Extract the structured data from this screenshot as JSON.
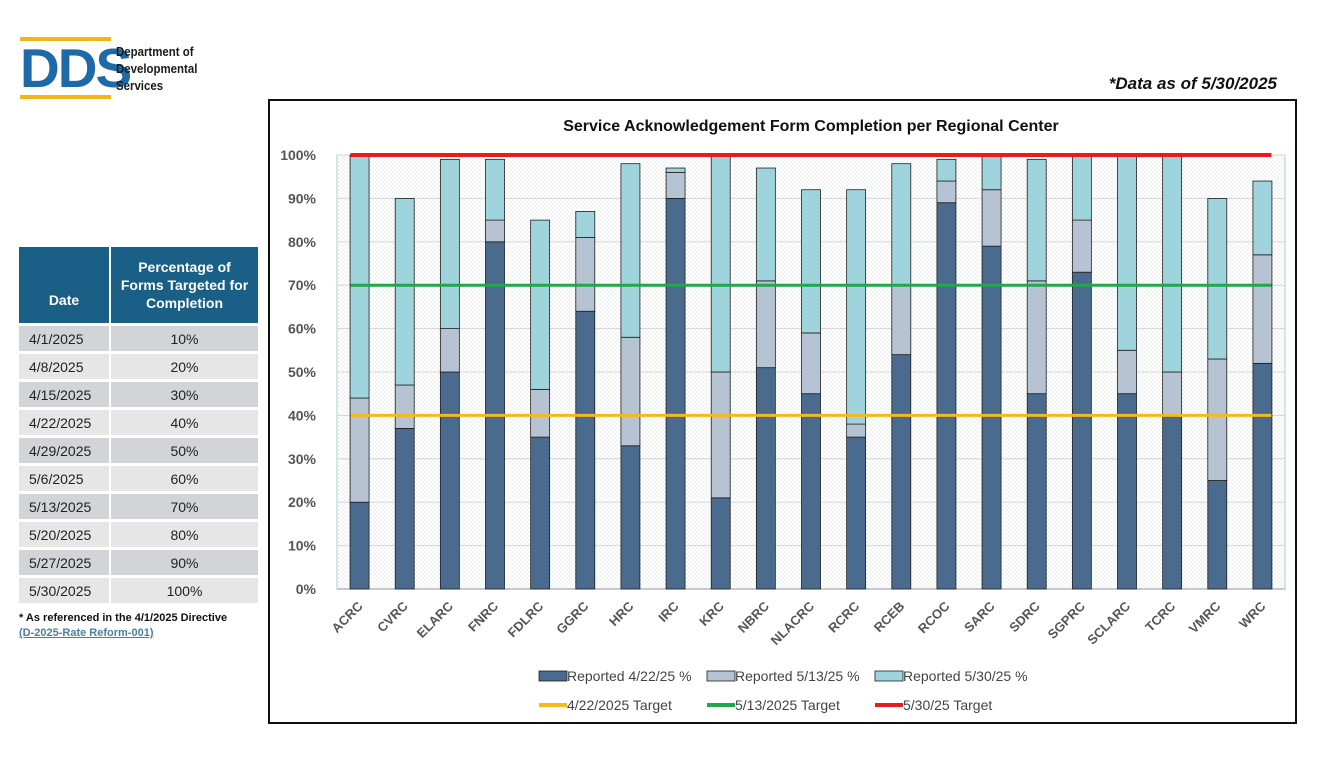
{
  "logo": {
    "letters": "DDS",
    "line1": "Department of",
    "line2": "Developmental",
    "line3": "Services"
  },
  "as_of": "*Data as of 5/30/2025",
  "table": {
    "header_date": "Date",
    "header_pct": "Percentage of Forms Targeted for Completion",
    "rows": [
      {
        "date": "4/1/2025",
        "pct": "10%"
      },
      {
        "date": "4/8/2025",
        "pct": "20%"
      },
      {
        "date": "4/15/2025",
        "pct": "30%"
      },
      {
        "date": "4/22/2025",
        "pct": "40%"
      },
      {
        "date": "4/29/2025",
        "pct": "50%"
      },
      {
        "date": "5/6/2025",
        "pct": "60%"
      },
      {
        "date": "5/13/2025",
        "pct": "70%"
      },
      {
        "date": "5/20/2025",
        "pct": "80%"
      },
      {
        "date": "5/27/2025",
        "pct": "90%"
      },
      {
        "date": "5/30/2025",
        "pct": "100%"
      }
    ]
  },
  "note": {
    "line1": "* As referenced in the 4/1/2025 Directive",
    "link": "(D-2025-Rate Reform-001)"
  },
  "colors": {
    "dark": "#4a6b8e",
    "mid": "#b6c3d3",
    "light": "#9fd4dc",
    "yellow": "#f6b91c",
    "green": "#1fa84a",
    "red": "#e81c1c",
    "header": "#1a5f86"
  },
  "chart_data": {
    "type": "bar",
    "stacked": true,
    "title": "Service Acknowledgement Form Completion per Regional Center",
    "categories": [
      "ACRC",
      "CVRC",
      "ELARC",
      "FNRC",
      "FDLRC",
      "GGRC",
      "HRC",
      "IRC",
      "KRC",
      "NBRC",
      "NLACRC",
      "RCRC",
      "RCEB",
      "RCOC",
      "SARC",
      "SDRC",
      "SGPRC",
      "SCLARC",
      "TCRC",
      "VMRC",
      "WRC"
    ],
    "series": [
      {
        "name": "Reported 4/22/25 %",
        "cumulative": [
          20,
          37,
          50,
          80,
          35,
          64,
          33,
          90,
          21,
          51,
          45,
          35,
          54,
          89,
          79,
          45,
          73,
          45,
          40,
          25,
          52
        ]
      },
      {
        "name": "Reported 5/13/25 %",
        "cumulative": [
          44,
          47,
          60,
          85,
          46,
          81,
          58,
          96,
          50,
          71,
          59,
          38,
          70,
          94,
          92,
          71,
          85,
          55,
          50,
          53,
          77
        ]
      },
      {
        "name": "Reported 5/30/25 %",
        "cumulative": [
          100,
          90,
          99,
          99,
          85,
          87,
          98,
          97,
          100,
          97,
          92,
          92,
          98,
          99,
          100,
          99,
          100,
          100,
          100,
          90,
          94
        ]
      }
    ],
    "targets": [
      {
        "name": "4/22/2025 Target",
        "value": 40
      },
      {
        "name": "5/13/2025 Target",
        "value": 70
      },
      {
        "name": "5/30/25 Target",
        "value": 100
      }
    ],
    "y_ticks": [
      "0%",
      "10%",
      "20%",
      "30%",
      "40%",
      "50%",
      "60%",
      "70%",
      "80%",
      "90%",
      "100%"
    ],
    "ylim": [
      0,
      100
    ],
    "legend": "bottom"
  }
}
